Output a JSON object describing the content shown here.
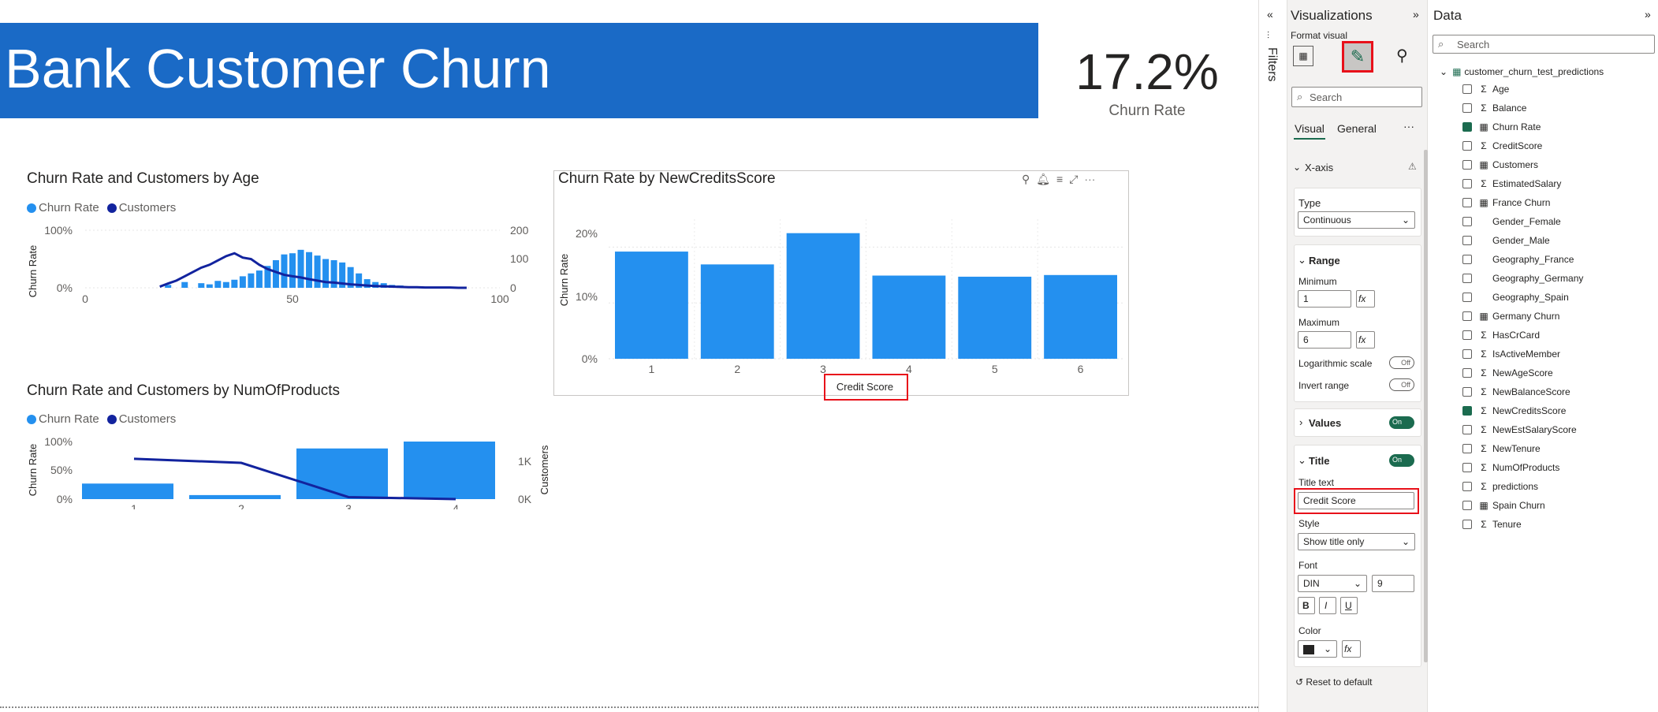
{
  "report": {
    "title": "Bank Customer Churn",
    "kpi_value": "17.2%",
    "kpi_label": "Churn Rate"
  },
  "charts": {
    "age": {
      "title": "Churn Rate and Customers by Age",
      "legend": [
        "Churn Rate",
        "Customers"
      ],
      "y_left_label": "Churn Rate",
      "y_right_label": "Customers",
      "y_left_ticks": [
        "100%",
        "0%"
      ],
      "y_right_ticks": [
        "200",
        "100",
        "0"
      ],
      "x_ticks": [
        "0",
        "50",
        "100"
      ]
    },
    "credit": {
      "title": "Churn Rate by NewCreditsScore",
      "y_label": "Churn Rate",
      "x_title": "Credit Score",
      "y_ticks": [
        "20%",
        "10%",
        "0%"
      ]
    },
    "products": {
      "title": "Churn Rate and Customers by NumOfProducts",
      "legend": [
        "Churn Rate",
        "Customers"
      ],
      "y_left_label": "Churn Rate",
      "y_right_label": "Customers",
      "y_left_ticks": [
        "100%",
        "50%",
        "0%"
      ],
      "y_right_ticks": [
        "1K",
        "0K"
      ]
    }
  },
  "chart_data": [
    {
      "type": "bar",
      "title": "Churn Rate by NewCreditsScore",
      "categories": [
        "1",
        "2",
        "3",
        "4",
        "5",
        "6"
      ],
      "values": [
        19.2,
        16.9,
        22.5,
        14.9,
        14.7,
        15.0
      ],
      "xlabel": "Credit Score",
      "ylabel": "Churn Rate",
      "ylim": [
        0,
        25
      ]
    },
    {
      "type": "bar+line",
      "title": "Churn Rate and Customers by NumOfProducts",
      "categories": [
        "1",
        "2",
        "3",
        "4"
      ],
      "series": [
        {
          "name": "Churn Rate",
          "type": "bar",
          "values": [
            27,
            7,
            88,
            100
          ]
        },
        {
          "name": "Customers",
          "type": "line",
          "values": [
            700,
            630,
            35,
            0
          ]
        }
      ],
      "ylabel": "Churn Rate",
      "y2label": "Customers"
    },
    {
      "type": "bar+line",
      "title": "Churn Rate and Customers by Age",
      "x": [
        18,
        20,
        22,
        24,
        26,
        28,
        30,
        32,
        34,
        36,
        38,
        40,
        42,
        44,
        46,
        48,
        50,
        52,
        54,
        56,
        58,
        60,
        62,
        64,
        66,
        68,
        70,
        72,
        74,
        76,
        78,
        80,
        82,
        84,
        86,
        88,
        90,
        92
      ],
      "series": [
        {
          "name": "Churn Rate",
          "type": "bar",
          "values": [
            0,
            5,
            0,
            10,
            0,
            8,
            6,
            12,
            10,
            14,
            20,
            25,
            30,
            38,
            48,
            58,
            60,
            66,
            62,
            56,
            50,
            48,
            44,
            36,
            25,
            15,
            10,
            8,
            5,
            4,
            2,
            0,
            0,
            0,
            0,
            0,
            0,
            0
          ]
        },
        {
          "name": "Customers",
          "type": "line",
          "values": [
            4,
            15,
            25,
            40,
            55,
            70,
            80,
            95,
            110,
            120,
            105,
            100,
            80,
            65,
            55,
            45,
            40,
            36,
            30,
            25,
            20,
            18,
            15,
            12,
            10,
            8,
            6,
            5,
            4,
            3,
            2,
            2,
            1,
            1,
            1,
            1,
            0,
            0
          ]
        }
      ],
      "ylabel": "Churn Rate",
      "y2label": "Customers",
      "xlim": [
        0,
        100
      ]
    }
  ],
  "filters_label": "Filters",
  "viz_pane": {
    "title": "Visualizations",
    "subtitle": "Format visual",
    "search_placeholder": "Search",
    "tabs": [
      "Visual",
      "General"
    ],
    "more": "···",
    "xaxis_header": "X-axis",
    "type_label": "Type",
    "type_value": "Continuous",
    "range_header": "Range",
    "minimum_label": "Minimum",
    "minimum_value": "1",
    "maximum_label": "Maximum",
    "maximum_value": "6",
    "log_label": "Logarithmic scale",
    "invert_label": "Invert range",
    "off": "Off",
    "on": "On",
    "values_header": "Values",
    "title_header": "Title",
    "title_text_label": "Title text",
    "title_text_value": "Credit Score",
    "style_label": "Style",
    "style_value": "Show title only",
    "font_label": "Font",
    "font_value": "DIN",
    "font_size": "9",
    "bold": "B",
    "italic": "I",
    "underline": "U",
    "color_label": "Color",
    "fx": "fx",
    "reset": "Reset to default"
  },
  "data_pane": {
    "title": "Data",
    "search_placeholder": "Search",
    "table_name": "customer_churn_test_predictions",
    "fields": [
      {
        "name": "Age",
        "icon": "sigma",
        "checked": false
      },
      {
        "name": "Balance",
        "icon": "sigma",
        "checked": false
      },
      {
        "name": "Churn Rate",
        "icon": "calc",
        "checked": true
      },
      {
        "name": "CreditScore",
        "icon": "sigma",
        "checked": false
      },
      {
        "name": "Customers",
        "icon": "calc",
        "checked": false
      },
      {
        "name": "EstimatedSalary",
        "icon": "sigma",
        "checked": false
      },
      {
        "name": "France Churn",
        "icon": "calc",
        "checked": false
      },
      {
        "name": "Gender_Female",
        "icon": "none",
        "checked": false
      },
      {
        "name": "Gender_Male",
        "icon": "none",
        "checked": false
      },
      {
        "name": "Geography_France",
        "icon": "none",
        "checked": false
      },
      {
        "name": "Geography_Germany",
        "icon": "none",
        "checked": false
      },
      {
        "name": "Geography_Spain",
        "icon": "none",
        "checked": false
      },
      {
        "name": "Germany Churn",
        "icon": "calc",
        "checked": false
      },
      {
        "name": "HasCrCard",
        "icon": "sigma",
        "checked": false
      },
      {
        "name": "IsActiveMember",
        "icon": "sigma",
        "checked": false
      },
      {
        "name": "NewAgeScore",
        "icon": "sigma",
        "checked": false
      },
      {
        "name": "NewBalanceScore",
        "icon": "sigma",
        "checked": false
      },
      {
        "name": "NewCreditsScore",
        "icon": "sigma",
        "checked": true
      },
      {
        "name": "NewEstSalaryScore",
        "icon": "sigma",
        "checked": false
      },
      {
        "name": "NewTenure",
        "icon": "sigma",
        "checked": false
      },
      {
        "name": "NumOfProducts",
        "icon": "sigma",
        "checked": false
      },
      {
        "name": "predictions",
        "icon": "sigma",
        "checked": false
      },
      {
        "name": "Spain Churn",
        "icon": "calc",
        "checked": false
      },
      {
        "name": "Tenure",
        "icon": "sigma",
        "checked": false
      }
    ]
  },
  "colors": {
    "accent_blue": "#1a6ac6",
    "bar_blue": "#2490ef",
    "line_navy": "#12239e",
    "highlight_red": "#e8111a",
    "toggle_green": "#1b6b4f"
  }
}
